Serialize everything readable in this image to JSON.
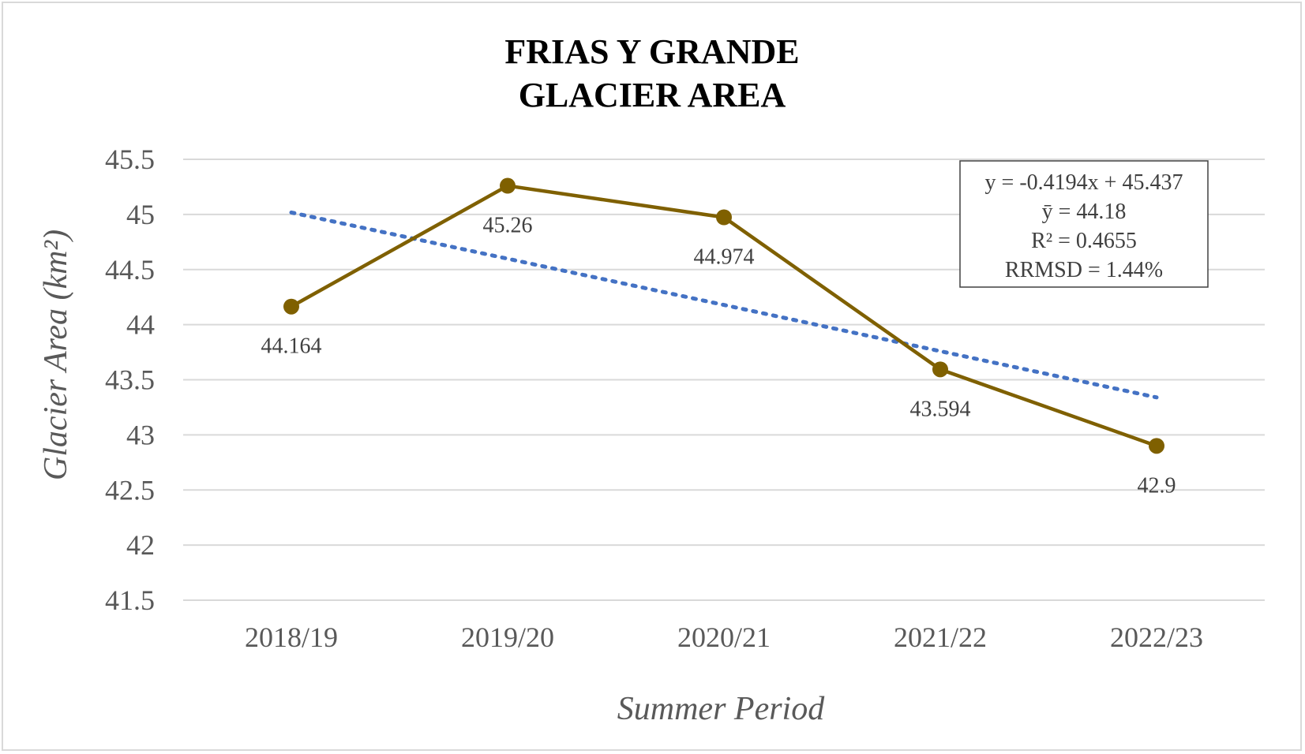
{
  "chart_data": {
    "type": "line",
    "title": [
      "FRIAS Y GRANDE",
      "GLACIER AREA"
    ],
    "xlabel": "Summer Period",
    "ylabel": "Glacier Area (km²)",
    "categories": [
      "2018/19",
      "2019/20",
      "2020/21",
      "2021/22",
      "2022/23"
    ],
    "series": [
      {
        "values": [
          44.164,
          45.26,
          44.974,
          43.594,
          42.9
        ],
        "data_labels": [
          "44.164",
          "45.26",
          "44.974",
          "43.594",
          "42.9"
        ],
        "color": "#7f6000",
        "marker": "circle"
      }
    ],
    "trendline": {
      "type": "linear",
      "slope": -0.4194,
      "intercept": 45.437,
      "color": "#4472c4",
      "style": "dotted"
    },
    "annotation": [
      "y = -0.4194x + 45.437",
      "ȳ = 44.18",
      "R² = 0.4655",
      "RRMSD = 1.44%"
    ],
    "ylim": [
      41.5,
      45.5
    ],
    "yticks": [
      "41.5",
      "42",
      "42.5",
      "43",
      "43.5",
      "44",
      "44.5",
      "45",
      "45.5"
    ],
    "grid": true,
    "gridline_color": "#d9d9d9",
    "legend": "none"
  }
}
